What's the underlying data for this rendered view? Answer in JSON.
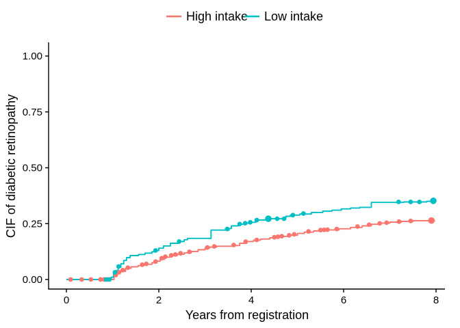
{
  "figure": {
    "background": "#ffffff",
    "text_color": "#000000",
    "axis_color": "#000000"
  },
  "legend": {
    "position": "top-center",
    "items": [
      {
        "label": "High intake",
        "color": "#F8766D"
      },
      {
        "label": "Low intake",
        "color": "#00BFC4"
      }
    ]
  },
  "chart_data": {
    "type": "line",
    "subtype": "step-cumulative-incidence",
    "title": "",
    "xlabel": "Years from registration",
    "ylabel": "CIF of diabetic retinopathy",
    "xlim": [
      0,
      8.2
    ],
    "ylim": [
      0,
      1.0
    ],
    "xticks": [
      0,
      2,
      4,
      6,
      8
    ],
    "ytick_values": [
      0,
      0.25,
      0.5,
      0.75,
      1.0
    ],
    "ytick_labels": [
      "0.00",
      "0.25",
      "0.50",
      "0.75",
      "1.00"
    ],
    "grid": false,
    "legend_position": "top",
    "series": [
      {
        "name": "High intake",
        "color": "#F8766D",
        "steps": [
          [
            0,
            0
          ],
          [
            0.98,
            0
          ],
          [
            1.03,
            0.015
          ],
          [
            1.09,
            0.026
          ],
          [
            1.16,
            0.036
          ],
          [
            1.28,
            0.05
          ],
          [
            1.4,
            0.057
          ],
          [
            1.55,
            0.062
          ],
          [
            1.68,
            0.068
          ],
          [
            1.85,
            0.075
          ],
          [
            1.95,
            0.082
          ],
          [
            2.03,
            0.09
          ],
          [
            2.12,
            0.1
          ],
          [
            2.25,
            0.107
          ],
          [
            2.4,
            0.113
          ],
          [
            2.55,
            0.119
          ],
          [
            2.7,
            0.125
          ],
          [
            2.85,
            0.133
          ],
          [
            3.0,
            0.141
          ],
          [
            3.1,
            0.145
          ],
          [
            3.25,
            0.149
          ],
          [
            3.6,
            0.152
          ],
          [
            3.75,
            0.162
          ],
          [
            3.9,
            0.17
          ],
          [
            4.05,
            0.176
          ],
          [
            4.2,
            0.181
          ],
          [
            4.4,
            0.187
          ],
          [
            4.6,
            0.193
          ],
          [
            4.8,
            0.198
          ],
          [
            5.0,
            0.206
          ],
          [
            5.15,
            0.212
          ],
          [
            5.35,
            0.217
          ],
          [
            5.6,
            0.222
          ],
          [
            5.9,
            0.227
          ],
          [
            6.15,
            0.233
          ],
          [
            6.4,
            0.24
          ],
          [
            6.6,
            0.247
          ],
          [
            6.8,
            0.252
          ],
          [
            7.0,
            0.257
          ],
          [
            7.25,
            0.26
          ],
          [
            7.5,
            0.263
          ],
          [
            7.97,
            0.264
          ]
        ],
        "markers": [
          [
            0.09,
            0
          ],
          [
            0.33,
            0
          ],
          [
            0.53,
            0
          ],
          [
            0.74,
            0
          ],
          [
            0.82,
            0
          ],
          [
            0.9,
            0
          ],
          [
            1.07,
            0.02
          ],
          [
            1.14,
            0.032
          ],
          [
            1.22,
            0.042
          ],
          [
            1.33,
            0.053
          ],
          [
            1.64,
            0.066
          ],
          [
            1.73,
            0.07
          ],
          [
            1.93,
            0.08
          ],
          [
            2.06,
            0.095
          ],
          [
            2.14,
            0.102
          ],
          [
            2.27,
            0.108
          ],
          [
            2.36,
            0.112
          ],
          [
            2.47,
            0.117
          ],
          [
            2.66,
            0.124
          ],
          [
            3.05,
            0.143
          ],
          [
            3.2,
            0.148
          ],
          [
            3.62,
            0.154
          ],
          [
            3.88,
            0.169
          ],
          [
            4.12,
            0.177
          ],
          [
            4.5,
            0.189
          ],
          [
            4.58,
            0.191
          ],
          [
            4.66,
            0.194
          ],
          [
            4.82,
            0.198
          ],
          [
            4.93,
            0.202
          ],
          [
            5.24,
            0.215
          ],
          [
            5.5,
            0.221
          ],
          [
            5.58,
            0.222
          ],
          [
            5.65,
            0.223
          ],
          [
            5.85,
            0.226
          ],
          [
            6.3,
            0.237
          ],
          [
            6.55,
            0.245
          ],
          [
            6.78,
            0.251
          ],
          [
            6.93,
            0.254
          ],
          [
            7.2,
            0.259
          ],
          [
            7.45,
            0.262
          ]
        ],
        "large_markers": [
          [
            7.9,
            0.264
          ]
        ]
      },
      {
        "name": "Low intake",
        "color": "#00BFC4",
        "steps": [
          [
            0,
            0
          ],
          [
            0.93,
            0
          ],
          [
            0.97,
            0.01
          ],
          [
            1.02,
            0.025
          ],
          [
            1.07,
            0.04
          ],
          [
            1.12,
            0.055
          ],
          [
            1.18,
            0.07
          ],
          [
            1.24,
            0.085
          ],
          [
            1.3,
            0.098
          ],
          [
            1.38,
            0.107
          ],
          [
            1.56,
            0.112
          ],
          [
            1.7,
            0.118
          ],
          [
            1.85,
            0.124
          ],
          [
            1.93,
            0.13
          ],
          [
            2.0,
            0.14
          ],
          [
            2.1,
            0.15
          ],
          [
            2.25,
            0.162
          ],
          [
            2.44,
            0.17
          ],
          [
            2.55,
            0.178
          ],
          [
            2.62,
            0.184
          ],
          [
            3.13,
            0.221
          ],
          [
            3.52,
            0.228
          ],
          [
            3.57,
            0.24
          ],
          [
            3.72,
            0.247
          ],
          [
            3.85,
            0.252
          ],
          [
            3.98,
            0.256
          ],
          [
            4.1,
            0.266
          ],
          [
            4.35,
            0.272
          ],
          [
            4.75,
            0.283
          ],
          [
            4.85,
            0.288
          ],
          [
            5.05,
            0.293
          ],
          [
            5.3,
            0.3
          ],
          [
            5.55,
            0.306
          ],
          [
            5.75,
            0.31
          ],
          [
            5.95,
            0.316
          ],
          [
            6.15,
            0.32
          ],
          [
            6.35,
            0.323
          ],
          [
            6.6,
            0.345
          ],
          [
            7.3,
            0.347
          ],
          [
            7.8,
            0.35
          ],
          [
            7.94,
            0.352
          ]
        ],
        "markers": [
          [
            0.86,
            0
          ],
          [
            0.93,
            0
          ],
          [
            1.05,
            0.032
          ],
          [
            1.13,
            0.058
          ],
          [
            1.93,
            0.13
          ],
          [
            2.44,
            0.17
          ],
          [
            3.48,
            0.226
          ],
          [
            3.75,
            0.248
          ],
          [
            3.87,
            0.252
          ],
          [
            3.98,
            0.256
          ],
          [
            4.12,
            0.266
          ],
          [
            4.56,
            0.272
          ],
          [
            4.71,
            0.272
          ],
          [
            4.9,
            0.288
          ],
          [
            5.13,
            0.295
          ],
          [
            7.19,
            0.347
          ],
          [
            7.45,
            0.347
          ],
          [
            7.64,
            0.347
          ]
        ],
        "large_markers": [
          [
            4.37,
            0.272
          ],
          [
            7.94,
            0.352
          ]
        ]
      }
    ]
  }
}
